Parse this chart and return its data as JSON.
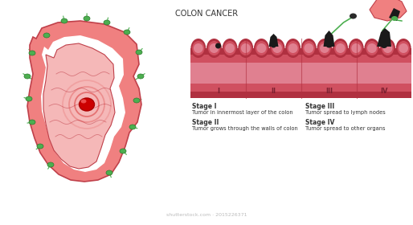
{
  "title": "COLON CANCER",
  "bg_color": "#ffffff",
  "colon_color": "#f08080",
  "colon_dark": "#c0404a",
  "colon_inner": "#f5b8b8",
  "lymph_color": "#4caf50",
  "tumor_color": "#cc0000",
  "text_color": "#333333",
  "wall_outer": "#b03040",
  "wall_color": "#d05060",
  "wall_inner": "#e08090",
  "black_tumor": "#1a1a1a",
  "stage_labels": [
    "I",
    "II",
    "III",
    "IV"
  ],
  "legend": [
    [
      "Stage I",
      "Tumor in innermost layer of the colon"
    ],
    [
      "Stage II",
      "Tumor grows through the walls of colon"
    ],
    [
      "Stage III",
      "Tumor spread to lymph nodes"
    ],
    [
      "Stage IV",
      "Tumor spread to other organs"
    ]
  ]
}
